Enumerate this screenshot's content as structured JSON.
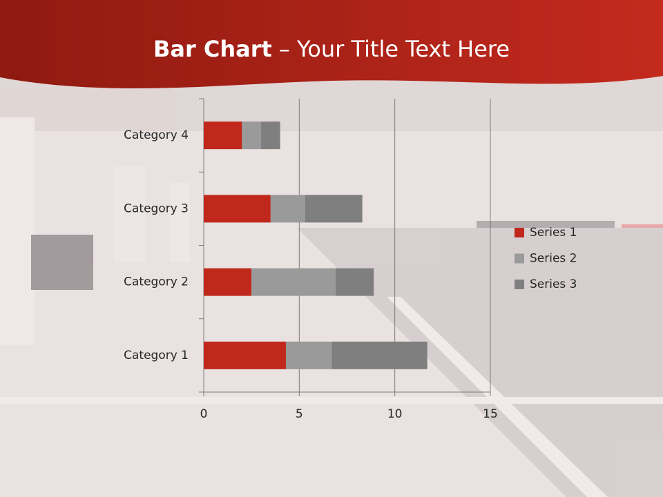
{
  "chart_data": {
    "type": "stacked-bar-horizontal",
    "title_bold": "Bar Chart",
    "title_rest": "– Your Title Text Here",
    "categories": [
      "Category 1",
      "Category 2",
      "Category 3",
      "Category 4"
    ],
    "series": [
      {
        "name": "Series 1",
        "color": "#c0281c",
        "values": [
          4.3,
          2.5,
          3.5,
          2
        ]
      },
      {
        "name": "Series 2",
        "color": "#9a9a9a",
        "values": [
          2.4,
          4.4,
          1.8,
          1
        ]
      },
      {
        "name": "Series 3",
        "color": "#7f7f7f",
        "values": [
          5,
          2,
          3,
          1
        ]
      }
    ],
    "xlim": [
      0,
      15
    ],
    "xticks": [
      0,
      5,
      10,
      15
    ],
    "grid": true,
    "legend": "right"
  }
}
